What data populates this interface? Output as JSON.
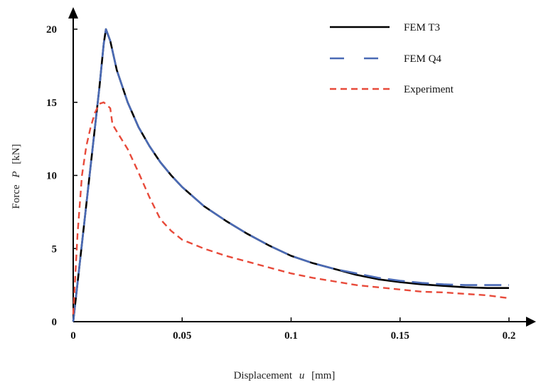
{
  "chart_data": {
    "type": "line",
    "title": "",
    "xlabel_prefix": "Displacement",
    "xlabel_var": "u",
    "xlabel_unit": "[mm]",
    "ylabel_prefix": "Force",
    "ylabel_var": "P",
    "ylabel_unit": "[kN]",
    "xlim": [
      0,
      0.2
    ],
    "ylim": [
      0,
      20
    ],
    "x_ticks": [
      0,
      0.05,
      0.1,
      0.15,
      0.2
    ],
    "x_tick_labels": [
      "0",
      "0.05",
      "0.1",
      "0.15",
      "0.2"
    ],
    "y_ticks": [
      0,
      5,
      10,
      15,
      20
    ],
    "y_tick_labels": [
      "0",
      "5",
      "10",
      "15",
      "20"
    ],
    "grid": false,
    "legend_position": "top-right",
    "series": [
      {
        "name": "FEM T3",
        "color": "#000000",
        "style": "solid",
        "points": [
          [
            0,
            0
          ],
          [
            0.003,
            4
          ],
          [
            0.006,
            8
          ],
          [
            0.009,
            12
          ],
          [
            0.012,
            16
          ],
          [
            0.014,
            19
          ],
          [
            0.015,
            20
          ],
          [
            0.017,
            19.2
          ],
          [
            0.02,
            17.2
          ],
          [
            0.025,
            15
          ],
          [
            0.03,
            13.3
          ],
          [
            0.035,
            12
          ],
          [
            0.04,
            10.9
          ],
          [
            0.045,
            10
          ],
          [
            0.05,
            9.2
          ],
          [
            0.06,
            7.9
          ],
          [
            0.07,
            6.9
          ],
          [
            0.08,
            6
          ],
          [
            0.09,
            5.2
          ],
          [
            0.1,
            4.5
          ],
          [
            0.11,
            4
          ],
          [
            0.12,
            3.6
          ],
          [
            0.13,
            3.2
          ],
          [
            0.14,
            2.9
          ],
          [
            0.15,
            2.7
          ],
          [
            0.16,
            2.55
          ],
          [
            0.17,
            2.45
          ],
          [
            0.18,
            2.35
          ],
          [
            0.19,
            2.3
          ],
          [
            0.2,
            2.3
          ]
        ]
      },
      {
        "name": "FEM Q4",
        "color": "#4a6ab5",
        "style": "long-dash",
        "points": [
          [
            0,
            0
          ],
          [
            0.003,
            4
          ],
          [
            0.006,
            8
          ],
          [
            0.009,
            12
          ],
          [
            0.012,
            16
          ],
          [
            0.014,
            19
          ],
          [
            0.015,
            20
          ],
          [
            0.017,
            19.2
          ],
          [
            0.02,
            17.2
          ],
          [
            0.025,
            15
          ],
          [
            0.03,
            13.3
          ],
          [
            0.035,
            12
          ],
          [
            0.04,
            10.9
          ],
          [
            0.045,
            10
          ],
          [
            0.05,
            9.2
          ],
          [
            0.06,
            7.9
          ],
          [
            0.07,
            6.9
          ],
          [
            0.08,
            6
          ],
          [
            0.09,
            5.2
          ],
          [
            0.1,
            4.5
          ],
          [
            0.11,
            4
          ],
          [
            0.12,
            3.6
          ],
          [
            0.13,
            3.3
          ],
          [
            0.14,
            3
          ],
          [
            0.15,
            2.8
          ],
          [
            0.16,
            2.65
          ],
          [
            0.17,
            2.55
          ],
          [
            0.18,
            2.5
          ],
          [
            0.19,
            2.5
          ],
          [
            0.2,
            2.5
          ]
        ]
      },
      {
        "name": "Experiment",
        "color": "#e84a3a",
        "style": "dash",
        "points": [
          [
            0,
            0.5
          ],
          [
            0.002,
            6
          ],
          [
            0.004,
            10
          ],
          [
            0.006,
            12
          ],
          [
            0.008,
            13.3
          ],
          [
            0.01,
            14.3
          ],
          [
            0.012,
            14.9
          ],
          [
            0.014,
            15
          ],
          [
            0.017,
            14.6
          ],
          [
            0.018,
            13.5
          ],
          [
            0.02,
            13
          ],
          [
            0.025,
            11.8
          ],
          [
            0.03,
            10.2
          ],
          [
            0.035,
            8.5
          ],
          [
            0.04,
            7
          ],
          [
            0.045,
            6.2
          ],
          [
            0.05,
            5.6
          ],
          [
            0.06,
            5
          ],
          [
            0.07,
            4.5
          ],
          [
            0.08,
            4.1
          ],
          [
            0.09,
            3.7
          ],
          [
            0.1,
            3.3
          ],
          [
            0.11,
            3
          ],
          [
            0.12,
            2.75
          ],
          [
            0.13,
            2.5
          ],
          [
            0.14,
            2.35
          ],
          [
            0.15,
            2.2
          ],
          [
            0.16,
            2.05
          ],
          [
            0.17,
            2
          ],
          [
            0.18,
            1.9
          ],
          [
            0.19,
            1.8
          ],
          [
            0.2,
            1.6
          ]
        ]
      }
    ]
  }
}
